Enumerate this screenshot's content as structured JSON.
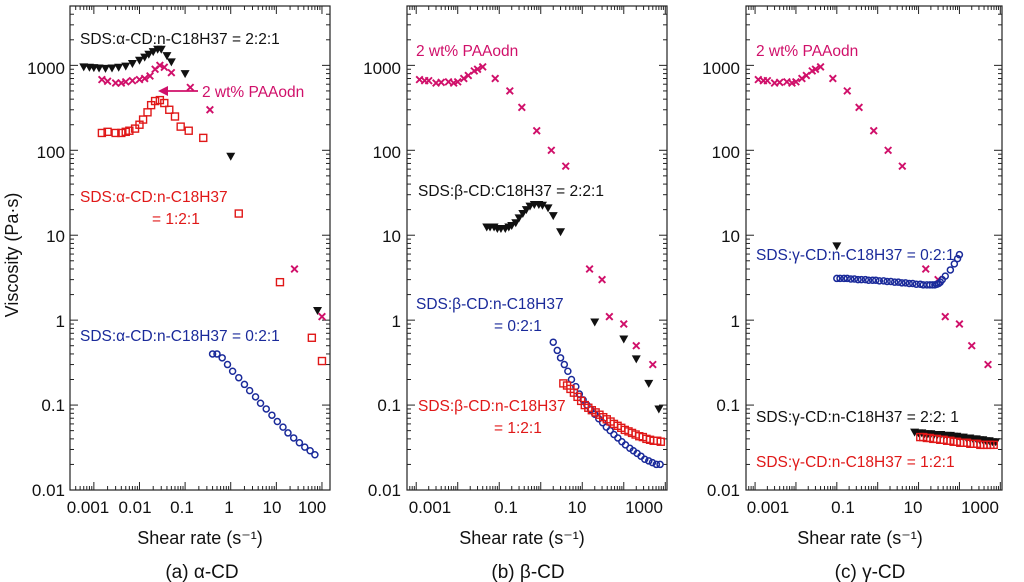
{
  "y_axis_label": "Viscosity (Pa·s)",
  "x_axis_label": "Shear rate  (s⁻¹)",
  "colors": {
    "black": "#111111",
    "magenta": "#d0106a",
    "red": "#e01818",
    "blue": "#1a2a9a"
  },
  "chart_data": [
    {
      "type": "scatter",
      "caption": "(a) α-CD",
      "xscale": "log",
      "yscale": "log",
      "xlim": [
        0.0003,
        150
      ],
      "ylim": [
        0.01,
        5000
      ],
      "xticks": [
        "0.001",
        "0.01",
        "0.1",
        "1",
        "10",
        "100"
      ],
      "yticks": [
        "0.01",
        "0.1",
        "1",
        "10",
        "100",
        "1000"
      ],
      "annotations": [
        {
          "text": "SDS:α-CD:n-C18H37 = 2:2:1",
          "color": "black"
        },
        {
          "text": "2 wt% PAAodn",
          "color": "magenta",
          "arrow": true
        },
        {
          "text": "SDS:α-CD:n-C18H37",
          "color": "red"
        },
        {
          "text": "= 1:2:1",
          "color": "red"
        },
        {
          "text": "SDS:α-CD:n-C18H37 = 0:2:1",
          "color": "blue"
        }
      ],
      "series": [
        {
          "name": "SDS:α-CD:n-C18H37 = 2:2:1",
          "color": "black",
          "marker": "triangle",
          "x": [
            0.0006,
            0.0008,
            0.001,
            0.0013,
            0.0018,
            0.0025,
            0.0035,
            0.005,
            0.007,
            0.01,
            0.013,
            0.016,
            0.02,
            0.025,
            0.03,
            0.04,
            0.05,
            0.1,
            1,
            80
          ],
          "y": [
            960,
            950,
            940,
            930,
            920,
            930,
            950,
            980,
            1050,
            1150,
            1250,
            1350,
            1450,
            1550,
            1550,
            1300,
            1100,
            800,
            85,
            1.3
          ]
        },
        {
          "name": "2 wt% PAAodn",
          "color": "magenta",
          "marker": "x",
          "x": [
            0.0015,
            0.002,
            0.003,
            0.004,
            0.005,
            0.007,
            0.01,
            0.013,
            0.017,
            0.022,
            0.028,
            0.035,
            0.05,
            0.13,
            0.35,
            25,
            100
          ],
          "y": [
            680,
            650,
            620,
            620,
            640,
            660,
            680,
            700,
            750,
            900,
            1000,
            950,
            820,
            550,
            300,
            4,
            1.1
          ]
        },
        {
          "name": "SDS:α-CD:n-C18H37 = 1:2:1",
          "color": "red",
          "marker": "square",
          "x": [
            0.0015,
            0.002,
            0.003,
            0.004,
            0.005,
            0.006,
            0.008,
            0.01,
            0.012,
            0.015,
            0.018,
            0.022,
            0.028,
            0.035,
            0.045,
            0.06,
            0.08,
            0.12,
            0.25,
            1.5,
            12,
            60,
            100
          ],
          "y": [
            160,
            165,
            160,
            160,
            165,
            170,
            180,
            200,
            230,
            280,
            340,
            380,
            390,
            360,
            300,
            250,
            190,
            170,
            140,
            18,
            2.8,
            0.62,
            0.33
          ]
        },
        {
          "name": "SDS:α-CD:n-C18H37 = 0:2:1",
          "color": "blue",
          "marker": "circle",
          "x": [
            0.4,
            0.5,
            0.65,
            0.85,
            1.1,
            1.5,
            2,
            2.6,
            3.5,
            4.5,
            6,
            8,
            10.5,
            14,
            18,
            24,
            32,
            42,
            55,
            70
          ],
          "y": [
            0.4,
            0.4,
            0.36,
            0.3,
            0.25,
            0.21,
            0.175,
            0.148,
            0.125,
            0.105,
            0.09,
            0.076,
            0.064,
            0.055,
            0.047,
            0.041,
            0.036,
            0.032,
            0.029,
            0.026
          ]
        }
      ]
    },
    {
      "type": "scatter",
      "caption": "(b) β-CD",
      "xscale": "log",
      "yscale": "log",
      "xlim": [
        0.0006,
        1100
      ],
      "ylim": [
        0.01,
        5000
      ],
      "xticks": [
        "0.001",
        "0.1",
        "10",
        "1000"
      ],
      "yticks": [
        "0.01",
        "0.1",
        "1",
        "10",
        "100",
        "1000"
      ],
      "annotations": [
        {
          "text": "2 wt% PAAodn",
          "color": "magenta"
        },
        {
          "text": "SDS:β-CD:C18H37 = 2:2:1",
          "color": "black"
        },
        {
          "text": "SDS:β-CD:n-C18H37",
          "color": "blue"
        },
        {
          "text": "= 0:2:1",
          "color": "blue"
        },
        {
          "text": "SDS:β-CD:n-C18H37",
          "color": "red"
        },
        {
          "text": "= 1:2:1",
          "color": "red"
        }
      ],
      "series": [
        {
          "name": "2 wt% PAAodn",
          "color": "magenta",
          "marker": "x",
          "x": [
            0.0012,
            0.0016,
            0.002,
            0.003,
            0.004,
            0.006,
            0.008,
            0.01,
            0.014,
            0.018,
            0.025,
            0.03,
            0.04,
            0.08,
            0.18,
            0.35,
            0.8,
            1.8,
            4,
            15,
            30,
            45,
            100,
            200,
            500
          ],
          "y": [
            680,
            660,
            660,
            620,
            630,
            640,
            620,
            640,
            700,
            760,
            860,
            900,
            960,
            700,
            500,
            320,
            170,
            100,
            65,
            4,
            3,
            1.1,
            0.9,
            0.5,
            0.3
          ]
        },
        {
          "name": "SDS:β-CD:C18H37 = 2:2:1",
          "color": "black",
          "marker": "triangle",
          "x": [
            0.05,
            0.06,
            0.075,
            0.09,
            0.11,
            0.14,
            0.17,
            0.2,
            0.25,
            0.3,
            0.37,
            0.45,
            0.55,
            0.7,
            0.9,
            1.1,
            1.5,
            2,
            3,
            20,
            100,
            200,
            400,
            700
          ],
          "y": [
            12.5,
            12.5,
            12.5,
            12,
            12,
            12,
            12.5,
            13,
            14,
            16,
            18,
            20,
            22,
            23,
            23,
            22.5,
            21,
            17,
            11,
            0.95,
            0.6,
            0.35,
            0.18,
            0.09
          ]
        },
        {
          "name": "SDS:β-CD:n-C18H37 = 0:2:1",
          "color": "blue",
          "marker": "circle",
          "x": [
            2,
            2.5,
            3,
            3.7,
            4.5,
            5.5,
            7,
            8.5,
            10.5,
            13,
            16,
            20,
            25,
            31,
            38,
            47,
            58,
            72,
            90,
            110,
            140,
            170,
            210,
            260,
            320,
            400,
            490,
            610,
            750
          ],
          "y": [
            0.55,
            0.44,
            0.36,
            0.3,
            0.25,
            0.2,
            0.165,
            0.135,
            0.115,
            0.1,
            0.088,
            0.078,
            0.069,
            0.062,
            0.055,
            0.05,
            0.045,
            0.041,
            0.037,
            0.034,
            0.031,
            0.029,
            0.027,
            0.025,
            0.023,
            0.022,
            0.021,
            0.02,
            0.02
          ]
        },
        {
          "name": "SDS:β-CD:n-C18H37 = 1:2:1",
          "color": "red",
          "marker": "square",
          "x": [
            3.5,
            4.3,
            5.2,
            6.3,
            7.7,
            9.4,
            11.5,
            14,
            17,
            21,
            26,
            32,
            39,
            48,
            58,
            71,
            87,
            106,
            130,
            158,
            193,
            236,
            288,
            352,
            430,
            525,
            640,
            780
          ],
          "y": [
            0.18,
            0.17,
            0.155,
            0.14,
            0.125,
            0.112,
            0.1,
            0.093,
            0.087,
            0.082,
            0.077,
            0.072,
            0.068,
            0.064,
            0.06,
            0.057,
            0.054,
            0.051,
            0.049,
            0.047,
            0.045,
            0.043,
            0.042,
            0.04,
            0.039,
            0.038,
            0.038,
            0.037
          ]
        }
      ]
    },
    {
      "type": "scatter",
      "caption": "(c) γ-CD",
      "xscale": "log",
      "yscale": "log",
      "xlim": [
        0.0006,
        1100
      ],
      "ylim": [
        0.01,
        5000
      ],
      "xticks": [
        "0.001",
        "0.1",
        "10",
        "1000"
      ],
      "yticks": [
        "0.01",
        "0.1",
        "1",
        "10",
        "100",
        "1000"
      ],
      "annotations": [
        {
          "text": "2 wt% PAAodn",
          "color": "magenta"
        },
        {
          "text": "SDS:γ-CD:n-C18H37 = 0:2:1",
          "color": "blue"
        },
        {
          "text": "SDS:γ-CD:n-C18H37 = 2:2: 1",
          "color": "black"
        },
        {
          "text": "SDS:γ-CD:n-C18H37 = 1:2:1",
          "color": "red"
        }
      ],
      "series": [
        {
          "name": "2 wt% PAAodn",
          "color": "magenta",
          "marker": "x",
          "x": [
            0.0012,
            0.0016,
            0.002,
            0.003,
            0.004,
            0.006,
            0.008,
            0.01,
            0.014,
            0.018,
            0.025,
            0.03,
            0.04,
            0.08,
            0.18,
            0.35,
            0.8,
            1.8,
            4,
            15,
            30,
            45,
            100,
            200,
            500
          ],
          "y": [
            680,
            660,
            660,
            620,
            630,
            640,
            620,
            640,
            700,
            760,
            860,
            900,
            960,
            700,
            500,
            320,
            170,
            100,
            65,
            4,
            3,
            1.1,
            0.9,
            0.5,
            0.3
          ]
        },
        {
          "name": "SDS:γ-CD:n-C18H37 = 0:2:1",
          "color": "blue",
          "marker": "circle",
          "x": [
            0.1,
            0.12,
            0.15,
            0.18,
            0.22,
            0.27,
            0.33,
            0.4,
            0.5,
            0.6,
            0.75,
            0.9,
            1.1,
            1.4,
            1.7,
            2.1,
            2.6,
            3.2,
            3.9,
            4.8,
            5.9,
            7.2,
            8.8,
            11,
            13,
            16,
            19,
            22,
            25,
            28,
            31,
            34,
            38,
            45,
            60,
            75,
            90,
            100
          ],
          "y": [
            3.1,
            3.1,
            3.1,
            3.1,
            3.05,
            3.05,
            3.0,
            3.0,
            3.0,
            2.95,
            2.95,
            2.95,
            2.9,
            2.9,
            2.85,
            2.85,
            2.8,
            2.8,
            2.75,
            2.75,
            2.7,
            2.7,
            2.65,
            2.65,
            2.6,
            2.6,
            2.6,
            2.6,
            2.6,
            2.65,
            2.7,
            2.8,
            3.0,
            3.3,
            3.9,
            4.6,
            5.3,
            5.9
          ]
        },
        {
          "name": "SDS:γ-CD:n-C18H37 = 2:2: 1",
          "color": "black",
          "marker": "triangle",
          "x": [
            0.1,
            8,
            10,
            12,
            14,
            17,
            20,
            24,
            29,
            35,
            42,
            50,
            60,
            72,
            86,
            103,
            124,
            149,
            179,
            215,
            258,
            310,
            372,
            446,
            535,
            640,
            770
          ],
          "y": [
            7.5,
            0.048,
            0.047,
            0.047,
            0.046,
            0.046,
            0.046,
            0.045,
            0.045,
            0.045,
            0.044,
            0.044,
            0.044,
            0.043,
            0.043,
            0.042,
            0.042,
            0.041,
            0.041,
            0.04,
            0.04,
            0.039,
            0.039,
            0.038,
            0.038,
            0.037,
            0.037
          ]
        },
        {
          "name": "SDS:γ-CD:n-C18H37 = 1:2:1",
          "color": "red",
          "marker": "square",
          "x": [
            11,
            13,
            16,
            19,
            23,
            28,
            34,
            41,
            50,
            60,
            72,
            87,
            105,
            127,
            153,
            185,
            223,
            269,
            325,
            392,
            473,
            571,
            690
          ],
          "y": [
            0.042,
            0.042,
            0.041,
            0.041,
            0.04,
            0.04,
            0.039,
            0.039,
            0.038,
            0.038,
            0.037,
            0.037,
            0.036,
            0.036,
            0.036,
            0.035,
            0.035,
            0.035,
            0.034,
            0.034,
            0.034,
            0.034,
            0.034
          ]
        }
      ]
    }
  ]
}
